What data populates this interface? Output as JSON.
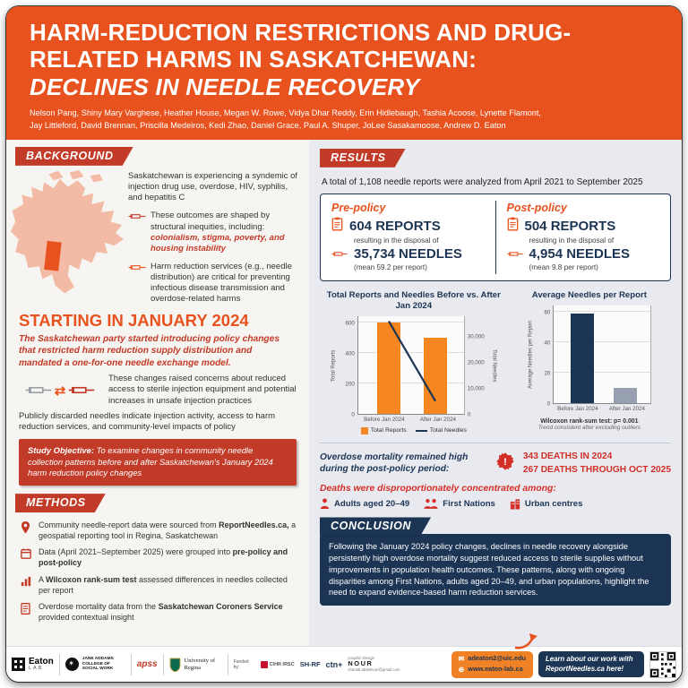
{
  "colors": {
    "accent_orange": "#E8521F",
    "badge_red": "#C23A28",
    "navy": "#1C3554",
    "bar_orange": "#F6861F",
    "death_red": "#D32F27"
  },
  "icons": {
    "exchange_arrows": "⇄",
    "mail": "✉",
    "globe": "⊕"
  },
  "header": {
    "title_line1": "HARM-REDUCTION RESTRICTIONS AND DRUG-",
    "title_line2": "RELATED HARMS IN SASKATCHEWAN:",
    "title_line3": "DECLINES IN NEEDLE RECOVERY",
    "authors_line1": "Nelson Pang, Shiny Mary Varghese, Heather House, Megan W. Rowe, Vidya Dhar Reddy, Erin Hidlebaugh, Tashia Acoose, Lynette Flamont,",
    "authors_line2": "Jay Littleford, David Brennan, Priscilla Medeiros, Kedi Zhao, Daniel Grace, Paul A. Shuper, JoLee Sasakamoose, Andrew D. Eaton"
  },
  "background": {
    "label": "BACKGROUND",
    "p1": "Saskatchewan is experiencing a syndemic of injection drug use, overdose, HIV, syphilis, and hepatitis C",
    "p2_normal": "These outcomes are shaped by structural inequities, including: ",
    "p2_highlight": "colonialism, stigma, poverty, and housing instability",
    "p3": "Harm reduction services (e.g., needle distribution) are critical for preventing infectious disease transmission and overdose-related harms",
    "heading": "STARTING IN JANUARY 2024",
    "policy": "The Saskatchewan party started introducing policy changes that restricted harm reduction supply distribution and mandated a one-for-one needle exchange model.",
    "concerns": "These changes raised concerns about reduced access to sterile injection equipment and potential increases in unsafe injection practices",
    "needles": "Publicly discarded needles indicate injection activity, access to harm reduction services, and community-level impacts of policy",
    "objective_label": "Study Objective:",
    "objective_text": " To examine changes in community needle collection patterns before and after Saskatchewan's January 2024 harm reduction policy changes"
  },
  "methods": {
    "label": "METHODS",
    "items": [
      {
        "pre": "Community needle-report data were sourced from ",
        "bold": "ReportNeedles.ca,",
        "post": " a geospatial reporting tool in Regina, Saskatchewan"
      },
      {
        "pre": "Data (April 2021–September 2025) were grouped into ",
        "bold": "pre-policy and post-policy",
        "post": ""
      },
      {
        "pre": "A ",
        "bold": "Wilcoxon rank-sum test",
        "post": " assessed differences in needles collected per report"
      },
      {
        "pre": "Overdose mortality data from the ",
        "bold": "Saskatchewan Coroners Service",
        "post": " provided contextual insight"
      }
    ]
  },
  "results": {
    "label": "RESULTS",
    "intro": "A total of 1,108 needle reports were analyzed from April 2021 to September 2025",
    "pre_policy": {
      "title": "Pre-policy",
      "reports": "604 REPORTS",
      "sub": "resulting in the disposal of",
      "needles": "35,734 NEEDLES",
      "mean": "(mean 59.2 per report)"
    },
    "post_policy": {
      "title": "Post-policy",
      "reports": "504 REPORTS",
      "sub": "resulting in the disposal of",
      "needles": "4,954 NEEDLES",
      "mean": "(mean 9.8 per report)"
    },
    "stats_note1": "Wilcoxon rank-sum test: p= 0.001",
    "stats_note2": "Trend consistent after excluding outliers",
    "mortality_lead": "Overdose mortality remained high during the post-policy period:",
    "mortality_stats": [
      "343 DEATHS IN 2024",
      "267 DEATHS THROUGH OCT 2025"
    ],
    "disparities_lead": "Deaths were disproportionately concentrated among:",
    "disparities": [
      "Adults aged 20–49",
      "First Nations",
      "Urban centres"
    ]
  },
  "chart_data": [
    {
      "type": "bar",
      "title": "Total Reports and Needles Before vs. After Jan 2024",
      "categories": [
        "Before Jan 2024",
        "After Jan 2024"
      ],
      "series": [
        {
          "name": "Total Reports",
          "kind": "bar",
          "values": [
            604,
            504
          ],
          "color": "#F6861F",
          "axis": "left"
        },
        {
          "name": "Total Needles",
          "kind": "line",
          "values": [
            35734,
            4954
          ],
          "color": "#1C3554",
          "axis": "right"
        }
      ],
      "left_axis": {
        "label": "Total Reports",
        "ticks": [
          0,
          200,
          400,
          600
        ],
        "max": 650
      },
      "right_axis": {
        "label": "Total Needles",
        "ticks": [
          0,
          10000,
          20000,
          30000
        ],
        "max": 38000
      },
      "legend_position": "bottom",
      "grid": true
    },
    {
      "type": "bar",
      "title": "Average Needles per Report",
      "categories": [
        "Before Jan 2024",
        "After Jan 2024"
      ],
      "values": [
        59.2,
        9.8
      ],
      "colors": [
        "#1C3554",
        "#97A0B0"
      ],
      "ylabel": "Average Needles per Report",
      "ticks": [
        0,
        20,
        40,
        60
      ],
      "max": 65,
      "grid": true
    }
  ],
  "conclusion": {
    "label": "CONCLUSION",
    "text": "Following the January 2024 policy changes, declines in needle recovery alongside persistently high overdose mortality suggest reduced access to sterile supplies without improvements in population health outcomes. These patterns, along with ongoing disparities among First Nations, adults aged 20–49, and urban populations, highlight the need to expand evidence-based harm reduction services."
  },
  "footer": {
    "eaton_name": "Eaton",
    "eaton_sub": "LAB",
    "jane_addams": "JANE ADDAMS COLLEGE OF SOCIAL WORK",
    "apss": "apss",
    "uregina": "University of Regina",
    "funded_by": "Funded by:",
    "cihr": "CIHR IRSC",
    "shrf": "SH-RF",
    "ctn": "ctn+",
    "design_label": "Graphic Design",
    "design_name": "NOUR",
    "design_email": "chantal.abdelnour@gmail.com",
    "email": "adeaton2@uic.edu",
    "website": "www.eaton-lab.ca",
    "cta": "Learn about our work with ReportNeedles.ca here!"
  }
}
